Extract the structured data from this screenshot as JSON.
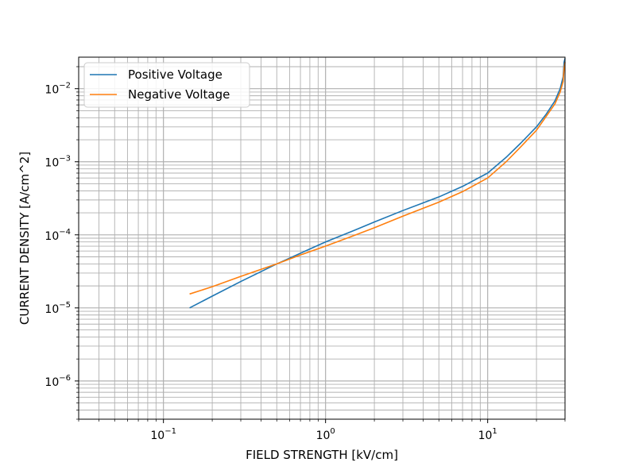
{
  "chart_data": {
    "type": "line",
    "xlabel": "FIELD STRENGTH [kV/cm]",
    "ylabel": "CURRENT DENSITY [A/cm^2]",
    "xscale": "log",
    "yscale": "log",
    "xlim": [
      0.03,
      30
    ],
    "ylim": [
      3e-07,
      0.027
    ],
    "grid": "major+minor",
    "legend": "top-left",
    "x_ticks": [
      {
        "value": 0.1,
        "base": "10",
        "exp": "−1"
      },
      {
        "value": 1,
        "base": "10",
        "exp": "0"
      },
      {
        "value": 10,
        "base": "10",
        "exp": "1"
      }
    ],
    "y_ticks": [
      {
        "value": 1e-06,
        "base": "10",
        "exp": "−6"
      },
      {
        "value": 1e-05,
        "base": "10",
        "exp": "−5"
      },
      {
        "value": 0.0001,
        "base": "10",
        "exp": "−4"
      },
      {
        "value": 0.001,
        "base": "10",
        "exp": "−3"
      },
      {
        "value": 0.01,
        "base": "10",
        "exp": "−2"
      }
    ],
    "series": [
      {
        "name": "Positive Voltage",
        "color": "#1f77b4",
        "x": [
          0.145,
          0.2,
          0.3,
          0.5,
          0.7,
          1,
          1.5,
          2,
          3,
          5,
          7,
          10,
          13,
          16,
          20,
          23,
          26,
          28,
          29.2,
          29.6,
          30
        ],
        "y": [
          1e-05,
          1.45e-05,
          2.3e-05,
          4e-05,
          5.6e-05,
          8e-05,
          0.000115,
          0.00015,
          0.000215,
          0.00033,
          0.00046,
          0.0007,
          0.00115,
          0.0018,
          0.003,
          0.0045,
          0.0068,
          0.01,
          0.0145,
          0.023,
          0.026
        ]
      },
      {
        "name": "Negative Voltage",
        "color": "#ff7f0e",
        "x": [
          0.145,
          0.2,
          0.3,
          0.5,
          0.7,
          1,
          1.5,
          2,
          3,
          5,
          7,
          10,
          13,
          16,
          20,
          23,
          26,
          28,
          29.2,
          29.6,
          30
        ],
        "y": [
          1.55e-05,
          1.95e-05,
          2.7e-05,
          4e-05,
          5.3e-05,
          7e-05,
          9.8e-05,
          0.000125,
          0.00018,
          0.00028,
          0.00039,
          0.0006,
          0.001,
          0.0016,
          0.0027,
          0.0042,
          0.0062,
          0.009,
          0.0125,
          0.019,
          0.023
        ]
      }
    ]
  }
}
